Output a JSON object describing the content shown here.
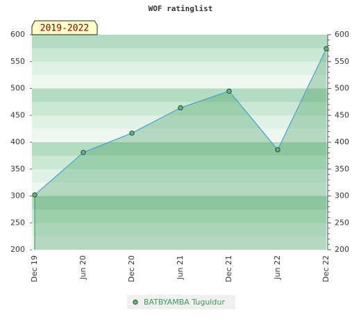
{
  "chart_data": {
    "type": "line",
    "title": "WOF ratinglist",
    "annotation": "2019-2022",
    "categories": [
      "Dec 19",
      "Jun 20",
      "Dec 20",
      "Jun 21",
      "Dec 21",
      "Jun 22",
      "Dec 22"
    ],
    "series": [
      {
        "name": "BATBYAMBA Tuguldur",
        "color": "#4a9fd4",
        "values": [
          302,
          381,
          417,
          464,
          495,
          386,
          574
        ]
      }
    ],
    "ylim": [
      200,
      600
    ],
    "yticks": [
      200,
      250,
      300,
      350,
      400,
      450,
      500,
      550,
      600
    ],
    "y2lim": [
      200,
      600
    ],
    "y2ticks": [
      200,
      250,
      300,
      350,
      400,
      450,
      500,
      550,
      600
    ]
  }
}
